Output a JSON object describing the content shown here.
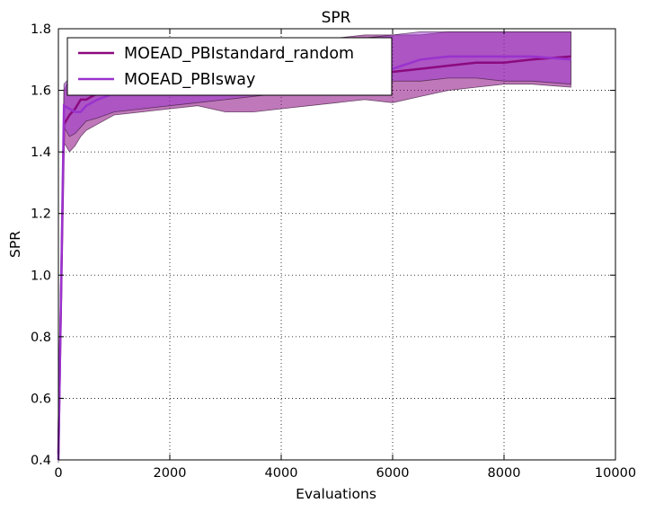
{
  "chart_data": {
    "type": "line",
    "title": "SPR",
    "xlabel": "Evaluations",
    "ylabel": "SPR",
    "xlim": [
      0,
      10000
    ],
    "ylim": [
      0.4,
      1.8
    ],
    "xticks": [
      "0",
      "2000",
      "4000",
      "6000",
      "8000",
      "10000"
    ],
    "yticks": [
      "0.4",
      "0.6",
      "0.8",
      "1.0",
      "1.2",
      "1.4",
      "1.6",
      "1.8"
    ],
    "grid": true,
    "legend_position": "top-left",
    "series": [
      {
        "name": "MOEAD_PBIstandard_random",
        "color": "#8b0a7f",
        "band_color": "#8b0a7f",
        "x": [
          0,
          100,
          200,
          300,
          400,
          500,
          700,
          1000,
          1500,
          2000,
          2500,
          3000,
          3500,
          4000,
          4500,
          5000,
          5500,
          6000,
          6500,
          7000,
          7500,
          8000,
          8500,
          9200
        ],
        "mean": [
          0.42,
          1.49,
          1.52,
          1.54,
          1.57,
          1.57,
          1.59,
          1.6,
          1.61,
          1.62,
          1.625,
          1.63,
          1.635,
          1.64,
          1.645,
          1.65,
          1.655,
          1.66,
          1.67,
          1.68,
          1.69,
          1.69,
          1.7,
          1.71
        ],
        "upper": [
          0.45,
          1.6,
          1.64,
          1.66,
          1.68,
          1.7,
          1.72,
          1.73,
          1.74,
          1.75,
          1.75,
          1.76,
          1.76,
          1.77,
          1.77,
          1.77,
          1.78,
          1.78,
          1.78,
          1.79,
          1.79,
          1.79,
          1.79,
          1.79
        ],
        "lower": [
          0.4,
          1.43,
          1.4,
          1.42,
          1.45,
          1.47,
          1.49,
          1.52,
          1.53,
          1.54,
          1.55,
          1.53,
          1.53,
          1.54,
          1.55,
          1.56,
          1.57,
          1.56,
          1.58,
          1.6,
          1.61,
          1.62,
          1.62,
          1.61
        ]
      },
      {
        "name": "MOEAD_PBIsway",
        "color": "#9a32cd",
        "band_color": "#9a32cd",
        "x": [
          0,
          100,
          200,
          300,
          400,
          500,
          700,
          1000,
          1500,
          2000,
          2500,
          3000,
          3500,
          4000,
          4500,
          5000,
          5500,
          6000,
          6500,
          7000,
          7500,
          8000,
          8500,
          9200
        ],
        "mean": [
          0.4,
          1.55,
          1.54,
          1.53,
          1.53,
          1.55,
          1.57,
          1.59,
          1.6,
          1.61,
          1.62,
          1.63,
          1.64,
          1.65,
          1.655,
          1.66,
          1.665,
          1.67,
          1.7,
          1.71,
          1.71,
          1.71,
          1.71,
          1.7
        ],
        "upper": [
          0.42,
          1.62,
          1.64,
          1.66,
          1.67,
          1.69,
          1.7,
          1.71,
          1.72,
          1.73,
          1.74,
          1.75,
          1.75,
          1.76,
          1.76,
          1.77,
          1.77,
          1.78,
          1.79,
          1.79,
          1.79,
          1.79,
          1.79,
          1.79
        ],
        "lower": [
          0.39,
          1.48,
          1.45,
          1.46,
          1.48,
          1.5,
          1.51,
          1.53,
          1.54,
          1.55,
          1.56,
          1.57,
          1.58,
          1.59,
          1.6,
          1.61,
          1.62,
          1.63,
          1.63,
          1.64,
          1.64,
          1.63,
          1.63,
          1.62
        ]
      }
    ]
  }
}
